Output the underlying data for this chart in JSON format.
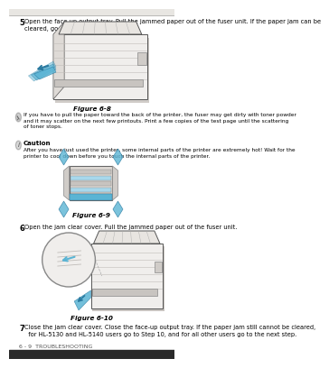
{
  "bg_color": "#ffffff",
  "header_bg": "#e8e6e2",
  "top_bar_color": "#2a2a2a",
  "bottom_bar_color": "#2a2a2a",
  "step5_bold": "5",
  "step5_text": "Open the face-up output tray. Pull the jammed paper out of the fuser unit. If the paper jam can be\ncleared, go to Step 7.",
  "fig68_label": "Figure 6-8",
  "note_text": "If you have to pull the paper toward the back of the printer, the fuser may get dirty with toner powder\nand it may scatter on the next few printouts. Print a few copies of the test page until the scattering\nof toner stops.",
  "caution_bold": "Caution",
  "caution_text": "After you have just used the printer, some internal parts of the printer are extremely hot! Wait for the\nprinter to cool down before you touch the internal parts of the printer.",
  "fig69_label": "Figure 6-9",
  "step6_bold": "6",
  "step6_text": " Open the jam clear cover. Pull the jammed paper out of the fuser unit.",
  "fig610_label": "Figure 6-10",
  "step7_bold": "7",
  "step7_text": "  Close the jam clear cover. Close the face-up output tray. If the paper jam still cannot be cleared,\n  for HL-5130 and HL-5140 users go to Step 10, and for all other users go to the next step.",
  "footer_text": "6 - 9  TROUBLESHOOTING",
  "printer_line": "#555555",
  "printer_fill": "#f0eeec",
  "printer_dark": "#c8c4c0",
  "printer_darker": "#a8a4a0",
  "arrow_color": "#5ab4d4",
  "arrow_dark": "#2a7aa0",
  "blue_light": "#a8d8ec",
  "shadow_color": "#b0aca8",
  "note_icon_color": "#a0a0a0",
  "caution_icon_color": "#c0c0c0"
}
